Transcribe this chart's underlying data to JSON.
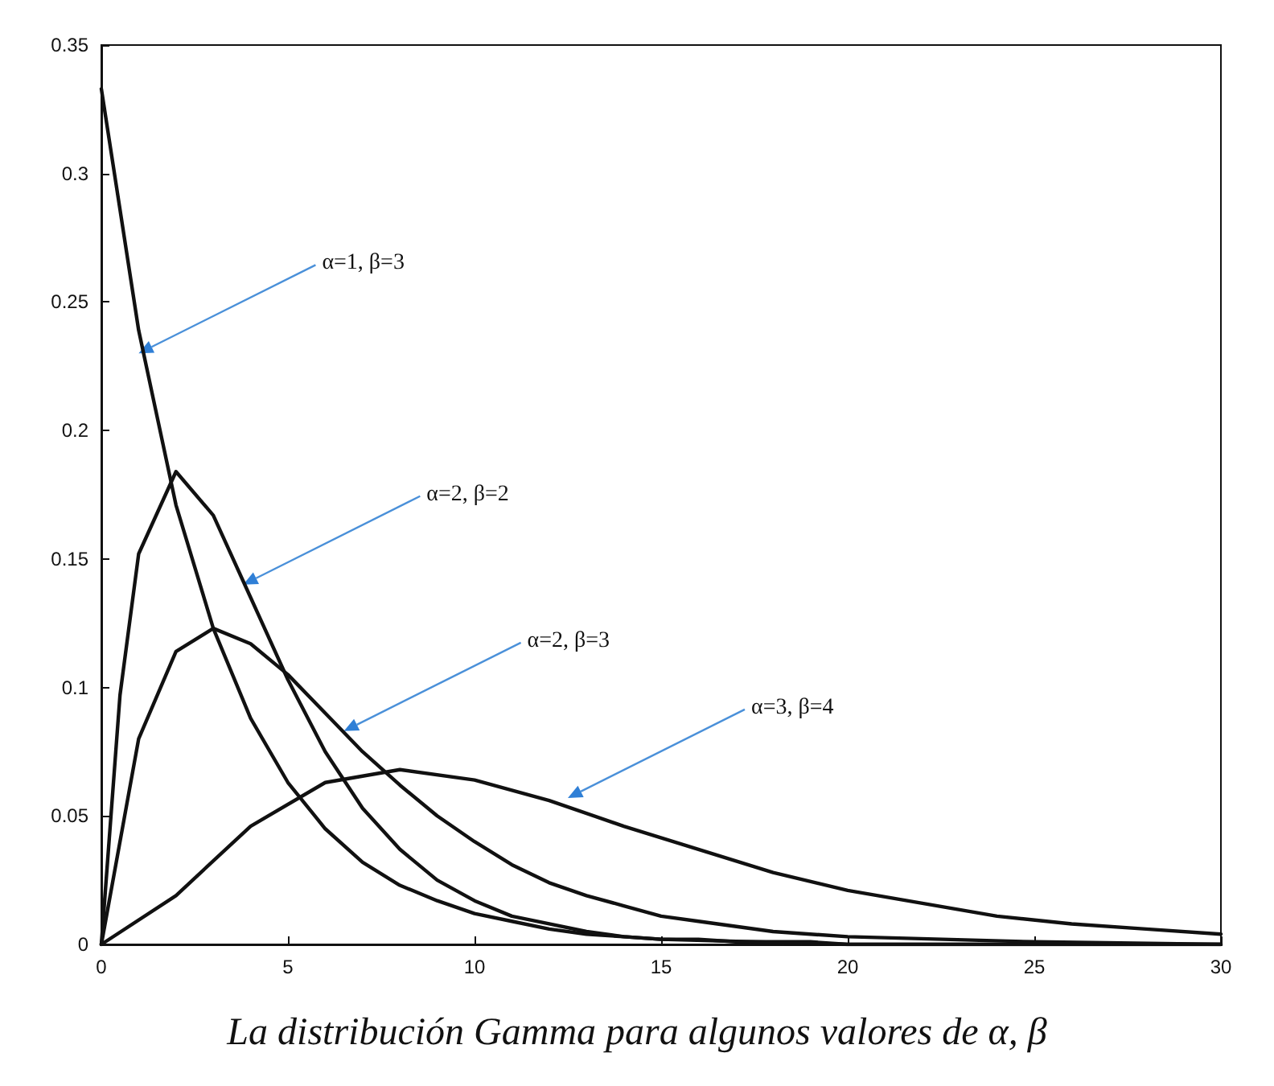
{
  "chart_data": {
    "type": "line",
    "title": "La distribución Gamma para algunos valores de α, β",
    "series": [
      {
        "color": "#111111",
        "x": [
          0,
          1,
          2,
          3,
          4,
          5,
          6,
          7,
          8,
          9,
          10,
          11,
          12,
          13,
          14,
          15,
          16,
          17,
          18,
          19,
          20,
          25,
          30
        ],
        "values": [
          0.333,
          0.239,
          0.171,
          0.123,
          0.088,
          0.063,
          0.045,
          0.032,
          0.023,
          0.017,
          0.012,
          0.009,
          0.006,
          0.004,
          0.003,
          0.002,
          0.002,
          0.001,
          0.001,
          0.001,
          0,
          0,
          0
        ]
      },
      {
        "color": "#111111",
        "x": [
          0,
          0.5,
          1,
          2,
          3,
          4,
          5,
          6,
          7,
          8,
          9,
          10,
          11,
          12,
          13,
          14,
          15,
          20,
          30
        ],
        "values": [
          0,
          0.097,
          0.152,
          0.184,
          0.167,
          0.135,
          0.103,
          0.075,
          0.053,
          0.037,
          0.025,
          0.017,
          0.011,
          0.008,
          0.005,
          0.003,
          0.002,
          0,
          0
        ]
      },
      {
        "color": "#111111",
        "x": [
          0,
          1,
          2,
          3,
          4,
          5,
          6,
          7,
          8,
          9,
          10,
          11,
          12,
          13,
          14,
          15,
          16,
          18,
          20,
          25,
          30
        ],
        "values": [
          0,
          0.08,
          0.114,
          0.123,
          0.117,
          0.105,
          0.09,
          0.075,
          0.062,
          0.05,
          0.04,
          0.031,
          0.024,
          0.019,
          0.015,
          0.011,
          0.009,
          0.005,
          0.003,
          0.001,
          0
        ]
      },
      {
        "color": "#111111",
        "x": [
          0,
          2,
          4,
          6,
          8,
          10,
          12,
          14,
          16,
          18,
          20,
          22,
          24,
          26,
          28,
          30
        ],
        "values": [
          0,
          0.019,
          0.046,
          0.063,
          0.068,
          0.064,
          0.056,
          0.046,
          0.037,
          0.028,
          0.021,
          0.016,
          0.011,
          0.008,
          0.006,
          0.004
        ]
      }
    ],
    "xlim": [
      0,
      30
    ],
    "xticks": [
      0,
      5,
      10,
      15,
      20,
      25,
      30
    ],
    "ylim": [
      0,
      0.35
    ],
    "yticks": [
      0,
      0.05,
      0.1,
      0.15,
      0.2,
      0.25,
      0.3,
      0.35
    ],
    "marker": "none",
    "line_style": "solid",
    "annotations": [
      {
        "text": "α=1, β=3",
        "x": 1,
        "y": 0.23
      },
      {
        "text": "α=2, β=2",
        "x": 3.8,
        "y": 0.14
      },
      {
        "text": "α=2, β=3",
        "x": 6.5,
        "y": 0.083
      },
      {
        "text": "α=3, β=4",
        "x": 12.5,
        "y": 0.057
      }
    ]
  }
}
